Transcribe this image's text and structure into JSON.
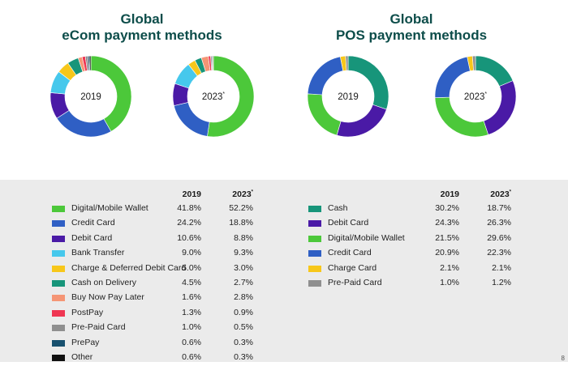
{
  "ecom": {
    "title_line1": "Global",
    "title_line2": "eCom payment methods",
    "header_2019": "2019",
    "header_2023": "2023",
    "header_2023_mark": "*"
  },
  "pos": {
    "title_line1": "Global",
    "title_line2": "POS payment methods",
    "header_2019": "2019",
    "header_2023": "2023",
    "header_2023_mark": "*"
  },
  "corner_text": "8",
  "chart_data": [
    {
      "type": "pie",
      "variant": "donut",
      "group": "eCom",
      "center_label": "2019",
      "center_mark": "",
      "categories": [
        "Digital/Mobile Wallet",
        "Credit Card",
        "Debit Card",
        "Bank Transfer",
        "Charge & Deferred Debit Card",
        "Cash on Delivery",
        "Buy Now Pay Later",
        "PostPay",
        "Pre-Paid Card",
        "PrePay",
        "Other"
      ],
      "values": [
        41.8,
        24.2,
        10.6,
        9.0,
        5.0,
        4.5,
        1.6,
        1.3,
        1.0,
        0.6,
        0.6
      ],
      "colors": [
        "#4cc83a",
        "#2f5fc4",
        "#4a1aa6",
        "#46c8ec",
        "#f7c71a",
        "#17957a",
        "#f59575",
        "#ef3652",
        "#8f8f8f",
        "#17506e",
        "#111111"
      ]
    },
    {
      "type": "pie",
      "variant": "donut",
      "group": "eCom",
      "center_label": "2023",
      "center_mark": "*",
      "categories": [
        "Digital/Mobile Wallet",
        "Credit Card",
        "Debit Card",
        "Bank Transfer",
        "Charge & Deferred Debit Card",
        "Cash on Delivery",
        "Buy Now Pay Later",
        "PostPay",
        "Pre-Paid Card",
        "PrePay",
        "Other"
      ],
      "values": [
        52.2,
        18.8,
        8.8,
        9.3,
        3.0,
        2.7,
        2.8,
        0.9,
        0.5,
        0.3,
        0.3
      ],
      "colors": [
        "#4cc83a",
        "#2f5fc4",
        "#4a1aa6",
        "#46c8ec",
        "#f7c71a",
        "#17957a",
        "#f59575",
        "#ef3652",
        "#8f8f8f",
        "#17506e",
        "#111111"
      ]
    },
    {
      "type": "pie",
      "variant": "donut",
      "group": "POS",
      "center_label": "2019",
      "center_mark": "",
      "categories": [
        "Cash",
        "Debit Card",
        "Digital/Mobile Wallet",
        "Credit Card",
        "Charge Card",
        "Pre-Paid Card"
      ],
      "values": [
        30.2,
        24.3,
        21.5,
        20.9,
        2.1,
        1.0
      ],
      "colors": [
        "#17957a",
        "#4a1aa6",
        "#4cc83a",
        "#2f5fc4",
        "#f7c71a",
        "#8f8f8f"
      ]
    },
    {
      "type": "pie",
      "variant": "donut",
      "group": "POS",
      "center_label": "2023",
      "center_mark": "*",
      "categories": [
        "Cash",
        "Debit Card",
        "Digital/Mobile Wallet",
        "Credit Card",
        "Charge Card",
        "Pre-Paid Card"
      ],
      "values": [
        18.7,
        26.3,
        29.6,
        22.3,
        2.1,
        1.2
      ],
      "colors": [
        "#17957a",
        "#4a1aa6",
        "#4cc83a",
        "#2f5fc4",
        "#f7c71a",
        "#8f8f8f"
      ]
    }
  ],
  "ecom_legend": [
    {
      "name": "Digital/Mobile Wallet",
      "v2019": "41.8%",
      "v2023": "52.2%",
      "color": "#4cc83a"
    },
    {
      "name": "Credit Card",
      "v2019": "24.2%",
      "v2023": "18.8%",
      "color": "#2f5fc4"
    },
    {
      "name": "Debit Card",
      "v2019": "10.6%",
      "v2023": "8.8%",
      "color": "#4a1aa6"
    },
    {
      "name": "Bank Transfer",
      "v2019": "9.0%",
      "v2023": "9.3%",
      "color": "#46c8ec"
    },
    {
      "name": "Charge & Deferred Debit Card",
      "v2019": "5.0%",
      "v2023": "3.0%",
      "color": "#f7c71a"
    },
    {
      "name": "Cash on Delivery",
      "v2019": "4.5%",
      "v2023": "2.7%",
      "color": "#17957a"
    },
    {
      "name": "Buy Now Pay Later",
      "v2019": "1.6%",
      "v2023": "2.8%",
      "color": "#f59575"
    },
    {
      "name": "PostPay",
      "v2019": "1.3%",
      "v2023": "0.9%",
      "color": "#ef3652"
    },
    {
      "name": "Pre-Paid Card",
      "v2019": "1.0%",
      "v2023": "0.5%",
      "color": "#8f8f8f"
    },
    {
      "name": "PrePay",
      "v2019": "0.6%",
      "v2023": "0.3%",
      "color": "#17506e"
    },
    {
      "name": "Other",
      "v2019": "0.6%",
      "v2023": "0.3%",
      "color": "#111111"
    }
  ],
  "pos_legend": [
    {
      "name": "Cash",
      "v2019": "30.2%",
      "v2023": "18.7%",
      "color": "#17957a"
    },
    {
      "name": "Debit Card",
      "v2019": "24.3%",
      "v2023": "26.3%",
      "color": "#4a1aa6"
    },
    {
      "name": "Digital/Mobile Wallet",
      "v2019": "21.5%",
      "v2023": "29.6%",
      "color": "#4cc83a"
    },
    {
      "name": "Credit Card",
      "v2019": "20.9%",
      "v2023": "22.3%",
      "color": "#2f5fc4"
    },
    {
      "name": "Charge Card",
      "v2019": "2.1%",
      "v2023": "2.1%",
      "color": "#f7c71a"
    },
    {
      "name": "Pre-Paid Card",
      "v2019": "1.0%",
      "v2023": "1.2%",
      "color": "#8f8f8f"
    }
  ]
}
